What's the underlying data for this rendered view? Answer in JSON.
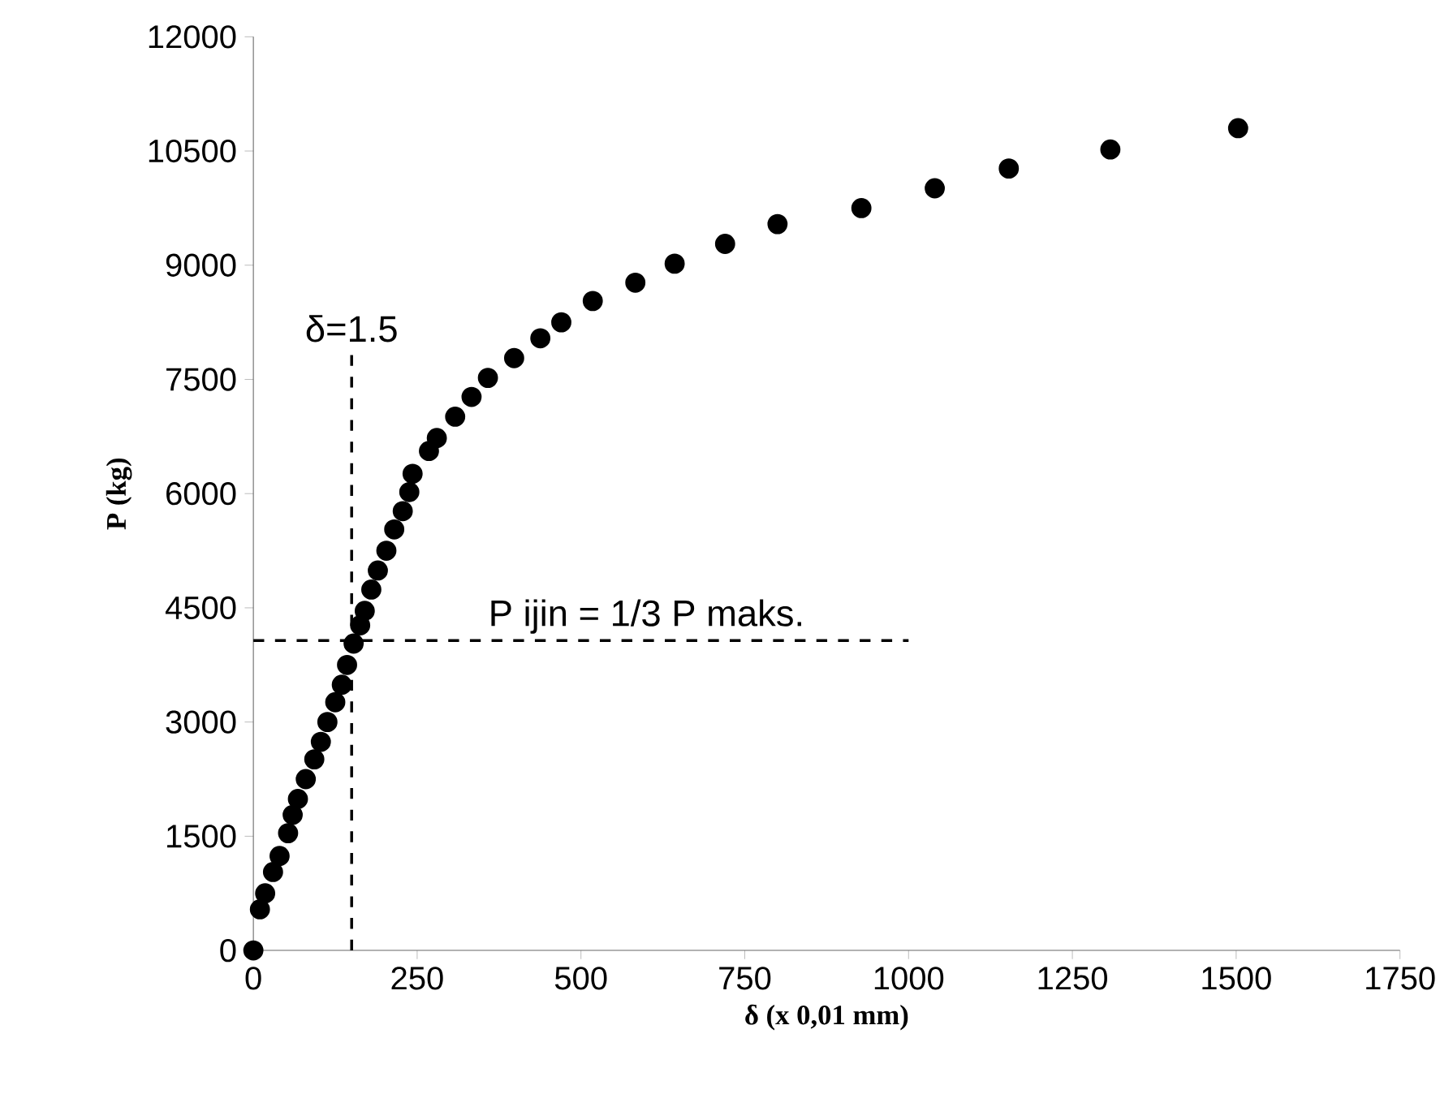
{
  "chart_data": {
    "type": "scatter",
    "xlabel": "δ (x 0,01 mm)",
    "ylabel": "P (kg)",
    "xlim": [
      0,
      1750
    ],
    "xticks": [
      0,
      250,
      500,
      750,
      1000,
      1250,
      1500,
      1750
    ],
    "ylim": [
      0,
      12000
    ],
    "yticks": [
      0,
      1500,
      3000,
      4500,
      6000,
      7500,
      9000,
      10500,
      12000
    ],
    "series": [
      {
        "color": "#000000",
        "marker": "circle",
        "x": [
          0,
          10,
          18,
          30,
          40,
          53,
          60,
          68,
          80,
          93,
          103,
          113,
          125,
          135,
          143,
          153,
          163,
          170,
          180,
          190,
          203,
          215,
          228,
          238,
          243,
          268,
          280,
          308,
          333,
          358,
          398,
          438,
          470,
          518,
          583,
          643,
          720,
          800,
          928,
          1040,
          1153,
          1308,
          1503
        ],
        "values": [
          0,
          540,
          750,
          1030,
          1240,
          1540,
          1780,
          1990,
          2250,
          2510,
          2740,
          3000,
          3260,
          3490,
          3750,
          4030,
          4270,
          4460,
          4740,
          4990,
          5250,
          5530,
          5770,
          6020,
          6260,
          6560,
          6730,
          7010,
          7270,
          7520,
          7780,
          8040,
          8250,
          8530,
          8770,
          9020,
          9280,
          9540,
          9750,
          10010,
          10270,
          10520,
          10800
        ]
      },
      {
        "type": "line",
        "color": "#000000",
        "line_style": "dashed",
        "marker": "none",
        "x": [
          150,
          150
        ],
        "values": [
          0,
          7900
        ]
      },
      {
        "type": "line",
        "color": "#000000",
        "line_style": "dashed",
        "marker": "none",
        "x": [
          0,
          1000
        ],
        "values": [
          4070,
          4070
        ]
      }
    ],
    "annotations": [
      {
        "text": "δ=1.5",
        "x": 150,
        "y": 7900
      },
      {
        "text": "P ijin = 1/3 P maks.",
        "x": 600,
        "y": 4070
      }
    ]
  }
}
